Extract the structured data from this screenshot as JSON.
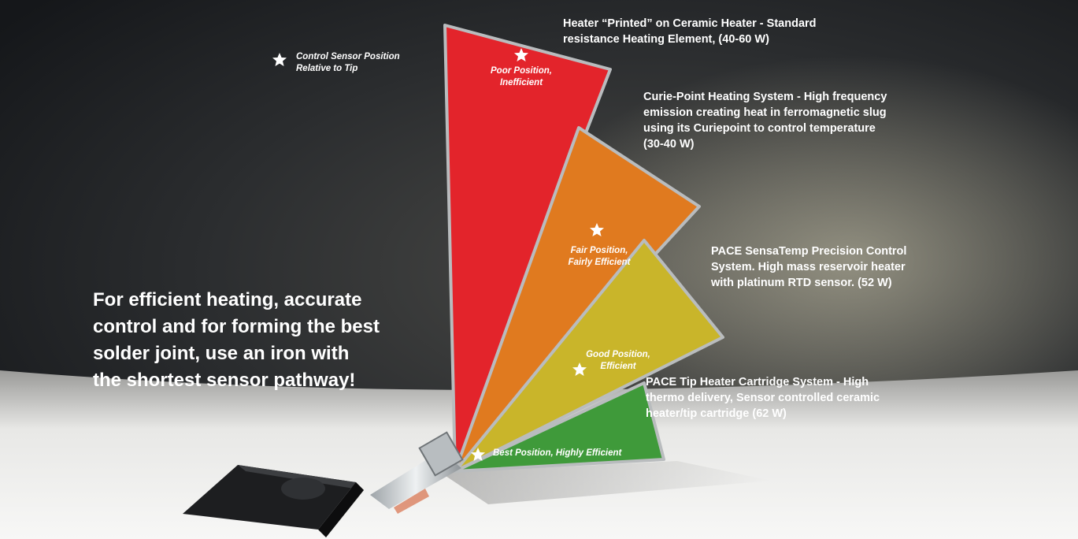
{
  "legend": {
    "icon": "star-icon",
    "line1": "Control Sensor Position",
    "line2": "Relative to Tip"
  },
  "main_message": {
    "line1": "For efficient heating, accurate",
    "line2": "control and for forming the best",
    "line3": "solder joint, use an iron with",
    "line4": "the shortest sensor pathway!"
  },
  "heaters": [
    {
      "color": "#e3242b",
      "description": [
        "Heater “Printed” on Ceramic Heater - Standard",
        "resistance Heating Element, (40-60 W)"
      ],
      "position": [
        "Poor Position,",
        "Inefficient"
      ]
    },
    {
      "color": "#e07a1f",
      "description": [
        "Curie-Point Heating System - High frequency",
        "emission creating heat in ferromagnetic slug",
        "using its Curiepoint to control temperature",
        "(30-40 W)"
      ],
      "position": [
        "Fair Position,",
        "Fairly Efficient"
      ]
    },
    {
      "color": "#c9b52a",
      "description": [
        "PACE SensaTemp Precision Control",
        "System. High mass reservoir heater",
        "with platinum RTD sensor. (52 W)"
      ],
      "position": [
        "Good Position,",
        "Efficient"
      ]
    },
    {
      "color": "#3f9a3a",
      "description": [
        "PACE Tip Heater Cartridge System - High",
        "thermo delivery, Sensor controlled ceramic",
        "heater/tip cartridge (62 W)"
      ],
      "position": [
        "Best Position, Highly Efficient"
      ]
    }
  ]
}
